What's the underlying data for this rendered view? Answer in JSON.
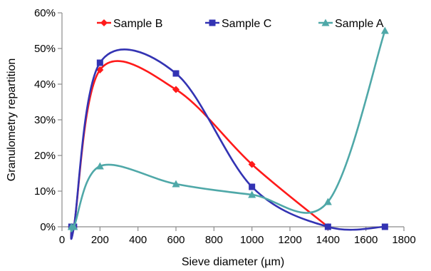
{
  "chart_data": {
    "type": "line",
    "xlabel": "Sieve diameter (µm)",
    "ylabel": "Granulometry repartition",
    "xlim": [
      0,
      1800
    ],
    "ylim": [
      0,
      60
    ],
    "x_ticks": [
      "0",
      "200",
      "400",
      "600",
      "800",
      "1000",
      "1200",
      "1400",
      "1600",
      "1800"
    ],
    "y_ticks": [
      "0%",
      "10%",
      "20%",
      "30%",
      "40%",
      "50%",
      "60%"
    ],
    "grid": false,
    "smoothed": true,
    "legend_position": "top",
    "series": [
      {
        "name": "Sample B",
        "color": "#ff1a1a",
        "marker": "diamond",
        "x": [
          50,
          63,
          200,
          600,
          1000,
          1400
        ],
        "y": [
          0,
          0,
          44,
          38.5,
          17.5,
          0
        ]
      },
      {
        "name": "Sample C",
        "color": "#3333b3",
        "marker": "square",
        "x": [
          50,
          63,
          200,
          600,
          1000,
          1400,
          1700
        ],
        "y": [
          0,
          0,
          46,
          43,
          11.2,
          0,
          0
        ]
      },
      {
        "name": "Sample A",
        "color": "#4fa8a8",
        "marker": "triangle",
        "x": [
          50,
          63,
          200,
          600,
          1000,
          1400,
          1700
        ],
        "y": [
          0,
          0,
          17,
          12,
          9,
          7,
          55
        ]
      }
    ]
  }
}
